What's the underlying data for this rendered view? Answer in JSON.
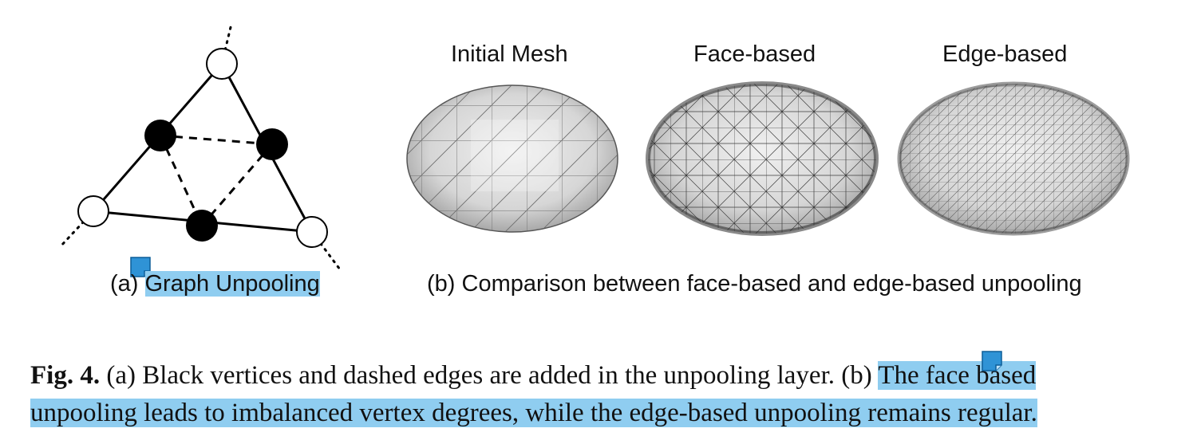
{
  "panel_a": {
    "subcaption_prefix": "(a) ",
    "subcaption_highlight": "Graph Unpooling"
  },
  "panel_b": {
    "mesh_titles": [
      "Initial Mesh",
      "Face-based",
      "Edge-based"
    ],
    "subcaption": "(b) Comparison between face-based and edge-based unpooling"
  },
  "caption": {
    "label": "Fig. 4.",
    "line1_plain": " (a) Black vertices and dashed edges are added in the unpooling layer. (b) ",
    "line1_highlight": "The face based",
    "line2_highlight": "unpooling leads to imbalanced vertex degrees, while the edge-based unpooling remains regular."
  },
  "colors": {
    "highlight": "#8fcdf0",
    "note_icon": "#2f93d6"
  },
  "icons": [
    "note-icon",
    "note-icon"
  ]
}
